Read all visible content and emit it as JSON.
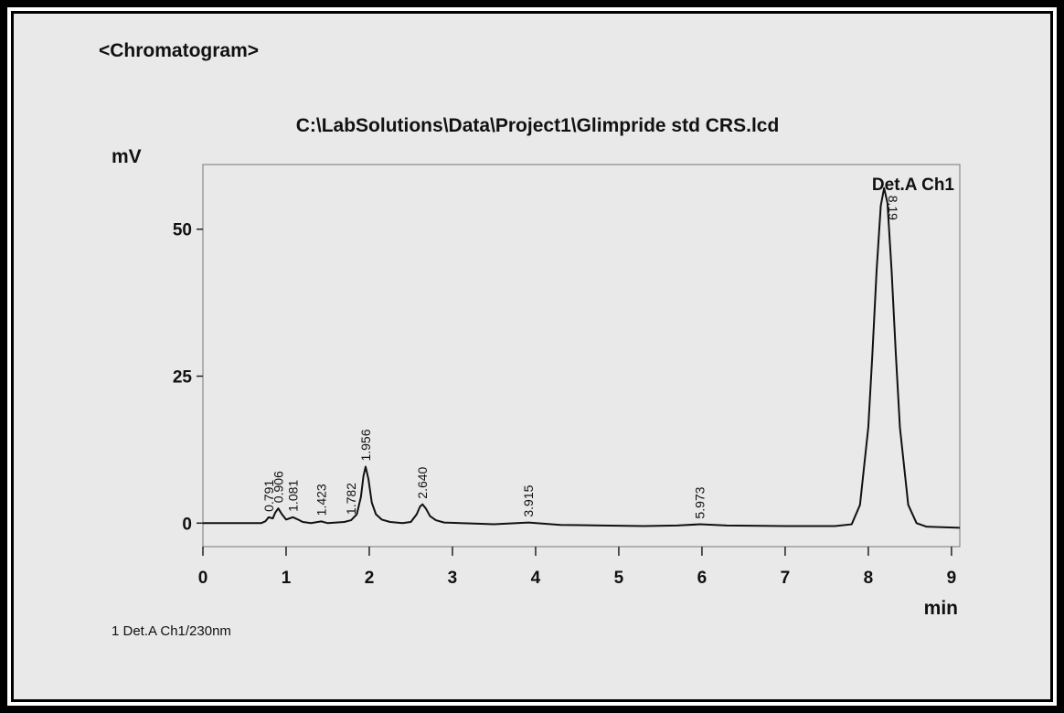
{
  "chart_data": {
    "type": "line",
    "header": "<Chromatogram>",
    "title": "C:\\LabSolutions\\Data\\Project1\\Glimpride std CRS.lcd",
    "ylabel": "mV",
    "xlabel": "min",
    "footnote": "1 Det.A Ch1/230nm",
    "x": [
      0,
      0.5,
      0.7,
      0.75,
      0.79,
      0.84,
      0.87,
      0.906,
      0.95,
      1.0,
      1.04,
      1.081,
      1.13,
      1.2,
      1.3,
      1.423,
      1.5,
      1.7,
      1.782,
      1.85,
      1.9,
      1.93,
      1.956,
      1.99,
      2.03,
      2.08,
      2.15,
      2.25,
      2.4,
      2.5,
      2.57,
      2.61,
      2.64,
      2.68,
      2.73,
      2.8,
      2.9,
      3.1,
      3.5,
      3.915,
      4.3,
      4.8,
      5.3,
      5.7,
      5.973,
      6.3,
      7.0,
      7.6,
      7.8,
      7.9,
      8.0,
      8.05,
      8.1,
      8.15,
      8.19,
      8.23,
      8.28,
      8.33,
      8.38,
      8.48,
      8.58,
      8.7,
      9.1
    ],
    "series": [
      {
        "name": "Det.A Ch1",
        "color": "#111111",
        "values": [
          0,
          0,
          0,
          0.3,
          1.0,
          0.8,
          1.8,
          2.5,
          1.5,
          0.6,
          0.8,
          1.0,
          0.7,
          0.2,
          0,
          0.3,
          0,
          0.2,
          0.5,
          1.5,
          4.5,
          8,
          9.6,
          7.5,
          3.5,
          1.5,
          0.6,
          0.2,
          0,
          0.2,
          1.5,
          2.8,
          3.2,
          2.5,
          1.2,
          0.5,
          0.1,
          0,
          -0.2,
          0.1,
          -0.3,
          -0.4,
          -0.5,
          -0.4,
          -0.2,
          -0.4,
          -0.5,
          -0.5,
          -0.2,
          3.1,
          16.3,
          29,
          43,
          54,
          57,
          54.5,
          43,
          29,
          16.3,
          3.1,
          0,
          -0.6,
          -0.8
        ]
      }
    ],
    "peaks": [
      {
        "x": 0.791,
        "label": "0.791"
      },
      {
        "x": 0.906,
        "label": "0.906"
      },
      {
        "x": 1.081,
        "label": "1.081"
      },
      {
        "x": 1.423,
        "label": "1.423"
      },
      {
        "x": 1.782,
        "label": "1.782"
      },
      {
        "x": 1.956,
        "label": "1.956"
      },
      {
        "x": 2.64,
        "label": "2.640"
      },
      {
        "x": 3.915,
        "label": "3.915"
      },
      {
        "x": 5.973,
        "label": "5.973"
      },
      {
        "x": 8.19,
        "label": "8.19"
      }
    ],
    "xlim": [
      0,
      9.1
    ],
    "ylim": [
      -4,
      61
    ],
    "xticks": [
      0,
      1,
      2,
      3,
      4,
      5,
      6,
      7,
      8,
      9
    ],
    "yticks": [
      0,
      25,
      50
    ]
  }
}
